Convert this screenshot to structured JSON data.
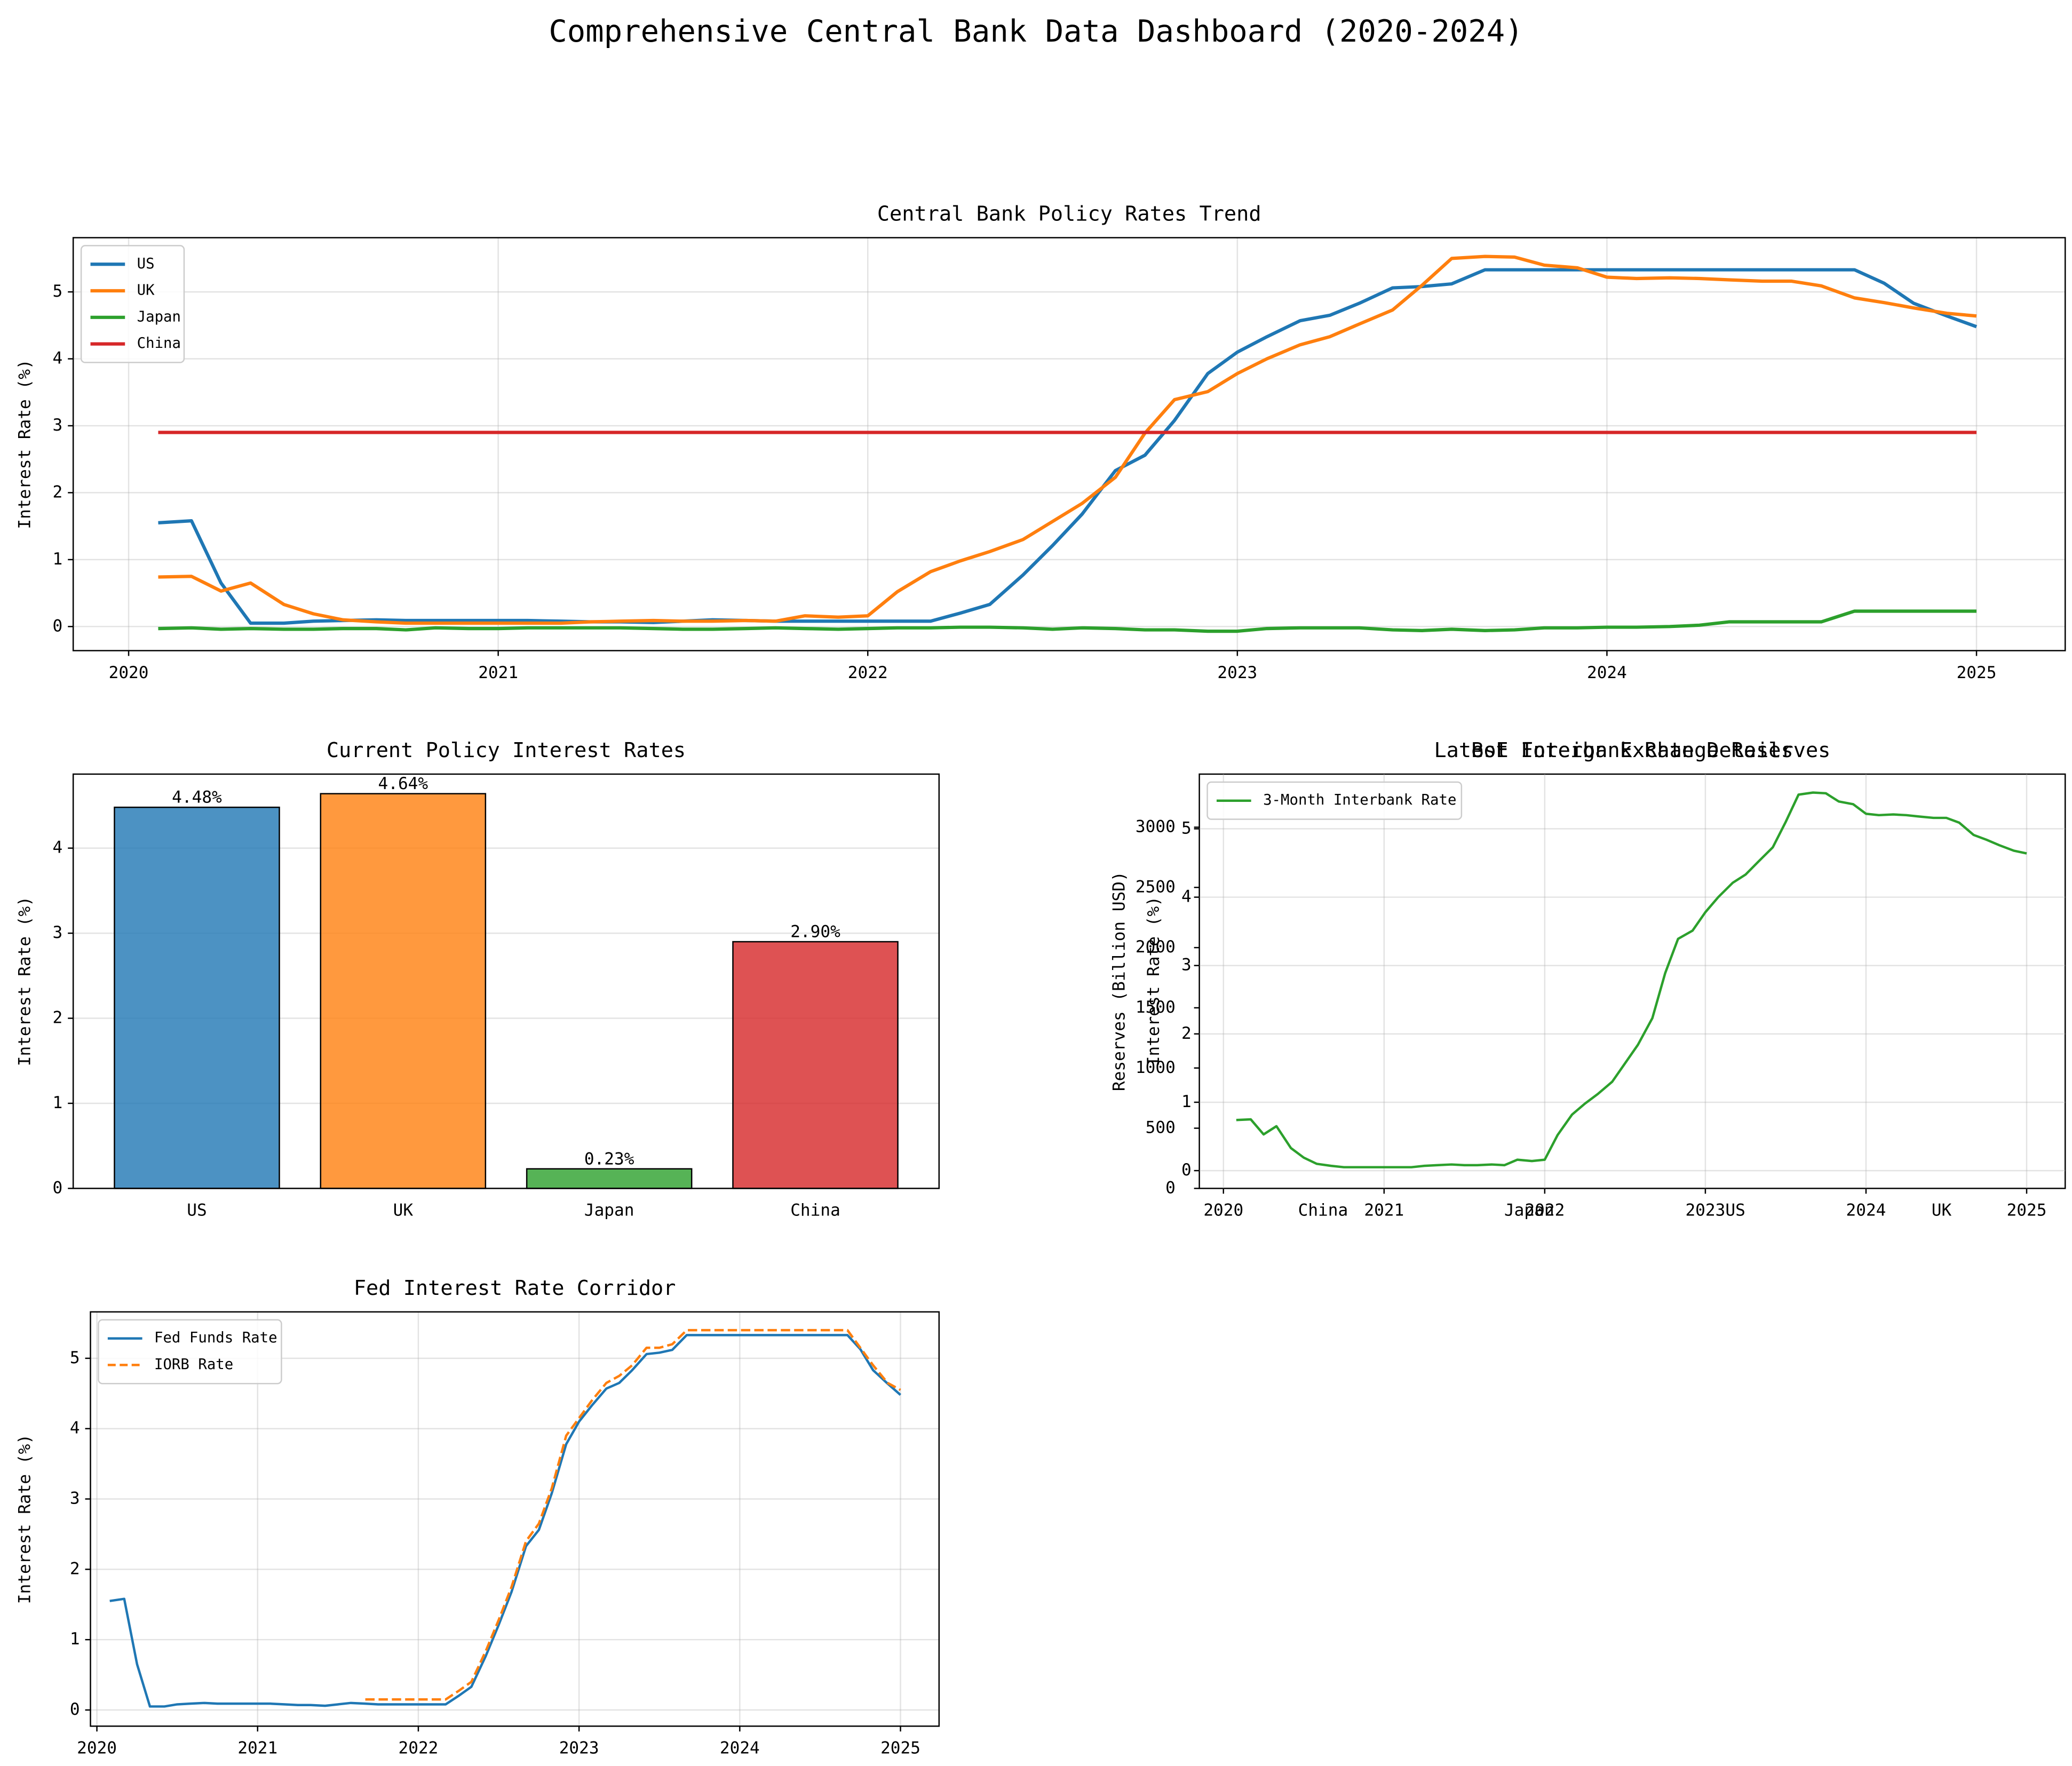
{
  "title": "Comprehensive Central Bank Data Dashboard (2020-2024)",
  "chart_data": [
    {
      "type": "line",
      "title": "Central Bank Policy Rates Trend",
      "y_label": "Interest Rate (%)",
      "x": [
        2020.08,
        2020.17,
        2020.25,
        2020.33,
        2020.42,
        2020.5,
        2020.58,
        2020.67,
        2020.75,
        2020.83,
        2020.92,
        2021,
        2021.08,
        2021.17,
        2021.25,
        2021.33,
        2021.42,
        2021.5,
        2021.58,
        2021.67,
        2021.75,
        2021.83,
        2021.92,
        2022,
        2022.08,
        2022.17,
        2022.25,
        2022.33,
        2022.42,
        2022.5,
        2022.58,
        2022.67,
        2022.75,
        2022.83,
        2022.92,
        2023,
        2023.08,
        2023.17,
        2023.25,
        2023.33,
        2023.42,
        2023.5,
        2023.58,
        2023.67,
        2023.75,
        2023.83,
        2023.92,
        2024,
        2024.08,
        2024.17,
        2024.25,
        2024.33,
        2024.42,
        2024.5,
        2024.58,
        2024.67,
        2024.75,
        2024.83,
        2024.92,
        2025
      ],
      "xlim": [
        2019.85,
        2025.24
      ],
      "xticks": [
        2020,
        2021,
        2022,
        2023,
        2024,
        2025
      ],
      "ylim": [
        -0.36,
        5.81
      ],
      "yticks": [
        0,
        1,
        2,
        3,
        4,
        5
      ],
      "grid": true,
      "legend": "upper left",
      "series": [
        {
          "name": "US",
          "color": "#1f77b4",
          "values": [
            1.55,
            1.58,
            0.65,
            0.05,
            0.05,
            0.08,
            0.09,
            0.1,
            0.09,
            0.09,
            0.09,
            0.09,
            0.09,
            0.08,
            0.07,
            0.07,
            0.06,
            0.08,
            0.1,
            0.09,
            0.08,
            0.08,
            0.08,
            0.08,
            0.08,
            0.08,
            0.2,
            0.33,
            0.77,
            1.21,
            1.68,
            2.33,
            2.56,
            3.08,
            3.78,
            4.1,
            4.33,
            4.57,
            4.65,
            4.83,
            5.06,
            5.08,
            5.12,
            5.33,
            5.33,
            5.33,
            5.33,
            5.33,
            5.33,
            5.33,
            5.33,
            5.33,
            5.33,
            5.33,
            5.33,
            5.33,
            5.13,
            4.83,
            4.64,
            4.48
          ]
        },
        {
          "name": "UK",
          "color": "#ff7f0e",
          "values": [
            0.74,
            0.75,
            0.53,
            0.65,
            0.33,
            0.19,
            0.1,
            0.07,
            0.05,
            0.05,
            0.05,
            0.05,
            0.05,
            0.05,
            0.07,
            0.08,
            0.09,
            0.08,
            0.08,
            0.09,
            0.08,
            0.16,
            0.14,
            0.16,
            0.52,
            0.82,
            0.98,
            1.12,
            1.3,
            1.57,
            1.84,
            2.23,
            2.89,
            3.39,
            3.51,
            3.78,
            4.0,
            4.21,
            4.33,
            4.52,
            4.73,
            5.1,
            5.5,
            5.53,
            5.52,
            5.4,
            5.36,
            5.22,
            5.2,
            5.21,
            5.2,
            5.18,
            5.16,
            5.16,
            5.09,
            4.91,
            4.84,
            4.76,
            4.68,
            4.64
          ]
        },
        {
          "name": "Japan",
          "color": "#2ca02c",
          "values": [
            -0.03,
            -0.02,
            -0.04,
            -0.03,
            -0.04,
            -0.04,
            -0.03,
            -0.03,
            -0.05,
            -0.02,
            -0.03,
            -0.03,
            -0.02,
            -0.02,
            -0.02,
            -0.02,
            -0.03,
            -0.04,
            -0.04,
            -0.03,
            -0.02,
            -0.03,
            -0.04,
            -0.03,
            -0.02,
            -0.02,
            -0.01,
            -0.01,
            -0.02,
            -0.04,
            -0.02,
            -0.03,
            -0.05,
            -0.05,
            -0.07,
            -0.07,
            -0.03,
            -0.02,
            -0.02,
            -0.02,
            -0.05,
            -0.06,
            -0.04,
            -0.06,
            -0.05,
            -0.02,
            -0.02,
            -0.01,
            -0.01,
            0.0,
            0.02,
            0.07,
            0.07,
            0.07,
            0.07,
            0.23,
            0.23,
            0.23,
            0.23,
            0.23
          ]
        },
        {
          "name": "China",
          "color": "#d62728",
          "values": [
            2.9,
            2.9,
            2.9,
            2.9,
            2.9,
            2.9,
            2.9,
            2.9,
            2.9,
            2.9,
            2.9,
            2.9,
            2.9,
            2.9,
            2.9,
            2.9,
            2.9,
            2.9,
            2.9,
            2.9,
            2.9,
            2.9,
            2.9,
            2.9,
            2.9,
            2.9,
            2.9,
            2.9,
            2.9,
            2.9,
            2.9,
            2.9,
            2.9,
            2.9,
            2.9,
            2.9,
            2.9,
            2.9,
            2.9,
            2.9,
            2.9,
            2.9,
            2.9,
            2.9,
            2.9,
            2.9,
            2.9,
            2.9,
            2.9,
            2.9,
            2.9,
            2.9,
            2.9,
            2.9,
            2.9,
            2.9,
            2.9,
            2.9,
            2.9,
            2.9
          ]
        }
      ]
    },
    {
      "type": "bar",
      "title": "Current Policy Interest Rates",
      "y_label": "Interest Rate (%)",
      "categories": [
        "US",
        "UK",
        "Japan",
        "China"
      ],
      "values": [
        4.48,
        4.64,
        0.23,
        2.9
      ],
      "value_labels": [
        "4.48%",
        "4.64%",
        "0.23%",
        "2.90%"
      ],
      "colors": [
        "#1f77b4",
        "#ff7f0e",
        "#2ca02c",
        "#d62728"
      ],
      "ylim": [
        0,
        4.87
      ],
      "yticks": [
        0,
        1,
        2,
        3,
        4
      ],
      "grid": true
    },
    {
      "type": "bar",
      "title": "Latest Foreign Exchange Reserves",
      "y_label": "Reserves (Billion USD)",
      "categories": [
        "China",
        "Japan",
        "US",
        "UK"
      ],
      "ylim": [
        0,
        3441
      ],
      "yticks": [
        0,
        500,
        1000,
        1500,
        2000,
        2500,
        3000
      ],
      "grid": false
    },
    {
      "type": "line",
      "title": "BoE Interbank Rate Details",
      "y_label": "Interest Rate (%)",
      "x": [
        2020.08,
        2020.17,
        2020.25,
        2020.33,
        2020.42,
        2020.5,
        2020.58,
        2020.67,
        2020.75,
        2020.83,
        2020.92,
        2021,
        2021.08,
        2021.17,
        2021.25,
        2021.33,
        2021.42,
        2021.5,
        2021.58,
        2021.67,
        2021.75,
        2021.83,
        2021.92,
        2022,
        2022.08,
        2022.17,
        2022.25,
        2022.33,
        2022.42,
        2022.5,
        2022.58,
        2022.67,
        2022.75,
        2022.83,
        2022.92,
        2023,
        2023.08,
        2023.17,
        2023.25,
        2023.33,
        2023.42,
        2023.5,
        2023.58,
        2023.67,
        2023.75,
        2023.83,
        2023.92,
        2024,
        2024.08,
        2024.17,
        2024.25,
        2024.33,
        2024.42,
        2024.5,
        2024.58,
        2024.67,
        2024.75,
        2024.83,
        2024.92,
        2025
      ],
      "xlim": [
        2019.85,
        2025.24
      ],
      "xticks": [
        2020,
        2021,
        2022,
        2023,
        2024,
        2025
      ],
      "ylim": [
        -0.26,
        5.8
      ],
      "yticks": [
        0,
        1,
        2,
        3,
        4,
        5
      ],
      "grid": true,
      "legend": "upper left",
      "series": [
        {
          "name": "3-Month Interbank Rate",
          "color": "#2ca02c",
          "values": [
            0.74,
            0.75,
            0.53,
            0.65,
            0.33,
            0.19,
            0.1,
            0.07,
            0.05,
            0.05,
            0.05,
            0.05,
            0.05,
            0.05,
            0.07,
            0.08,
            0.09,
            0.08,
            0.08,
            0.09,
            0.08,
            0.16,
            0.14,
            0.16,
            0.52,
            0.82,
            0.98,
            1.12,
            1.3,
            1.57,
            1.84,
            2.23,
            2.89,
            3.39,
            3.51,
            3.78,
            4.0,
            4.21,
            4.33,
            4.52,
            4.73,
            5.1,
            5.5,
            5.53,
            5.52,
            5.4,
            5.36,
            5.22,
            5.2,
            5.21,
            5.2,
            5.18,
            5.16,
            5.16,
            5.09,
            4.91,
            4.84,
            4.76,
            4.68,
            4.64
          ]
        }
      ]
    },
    {
      "type": "line",
      "title": "Fed Interest Rate Corridor",
      "y_label": "Interest Rate (%)",
      "x": [
        2020.08,
        2020.17,
        2020.25,
        2020.33,
        2020.42,
        2020.5,
        2020.58,
        2020.67,
        2020.75,
        2020.83,
        2020.92,
        2021,
        2021.08,
        2021.17,
        2021.25,
        2021.33,
        2021.42,
        2021.5,
        2021.58,
        2021.67,
        2021.75,
        2021.83,
        2021.92,
        2022,
        2022.08,
        2022.17,
        2022.25,
        2022.33,
        2022.42,
        2022.5,
        2022.58,
        2022.67,
        2022.75,
        2022.83,
        2022.92,
        2023,
        2023.08,
        2023.17,
        2023.25,
        2023.33,
        2023.42,
        2023.5,
        2023.58,
        2023.67,
        2023.75,
        2023.83,
        2023.92,
        2024,
        2024.08,
        2024.17,
        2024.25,
        2024.33,
        2024.42,
        2024.5,
        2024.58,
        2024.67,
        2024.75,
        2024.83,
        2024.92,
        2025
      ],
      "xlim": [
        2019.96,
        2025.24
      ],
      "xticks": [
        2020,
        2021,
        2022,
        2023,
        2024,
        2025
      ],
      "ylim": [
        -0.23,
        5.66
      ],
      "yticks": [
        0,
        1,
        2,
        3,
        4,
        5
      ],
      "grid": true,
      "legend": "upper left",
      "series": [
        {
          "name": "Fed Funds Rate",
          "color": "#1f77b4",
          "values": [
            1.55,
            1.58,
            0.65,
            0.05,
            0.05,
            0.08,
            0.09,
            0.1,
            0.09,
            0.09,
            0.09,
            0.09,
            0.09,
            0.08,
            0.07,
            0.07,
            0.06,
            0.08,
            0.1,
            0.09,
            0.08,
            0.08,
            0.08,
            0.08,
            0.08,
            0.08,
            0.2,
            0.33,
            0.77,
            1.21,
            1.68,
            2.33,
            2.56,
            3.08,
            3.78,
            4.1,
            4.33,
            4.57,
            4.65,
            4.83,
            5.06,
            5.08,
            5.12,
            5.33,
            5.33,
            5.33,
            5.33,
            5.33,
            5.33,
            5.33,
            5.33,
            5.33,
            5.33,
            5.33,
            5.33,
            5.33,
            5.13,
            4.83,
            4.64,
            4.48
          ]
        },
        {
          "name": "IORB Rate",
          "color": "#ff7f0e",
          "linestyle": "dashed",
          "values": [
            null,
            null,
            null,
            null,
            null,
            null,
            null,
            null,
            null,
            null,
            null,
            null,
            null,
            null,
            null,
            null,
            null,
            null,
            null,
            0.15,
            0.15,
            0.15,
            0.15,
            0.15,
            0.15,
            0.15,
            0.27,
            0.4,
            0.84,
            1.28,
            1.75,
            2.4,
            2.65,
            3.15,
            3.9,
            4.15,
            4.4,
            4.65,
            4.75,
            4.9,
            5.15,
            5.15,
            5.2,
            5.4,
            5.4,
            5.4,
            5.4,
            5.4,
            5.4,
            5.4,
            5.4,
            5.4,
            5.4,
            5.4,
            5.4,
            5.4,
            5.15,
            4.9,
            4.65,
            4.55
          ]
        }
      ]
    }
  ]
}
